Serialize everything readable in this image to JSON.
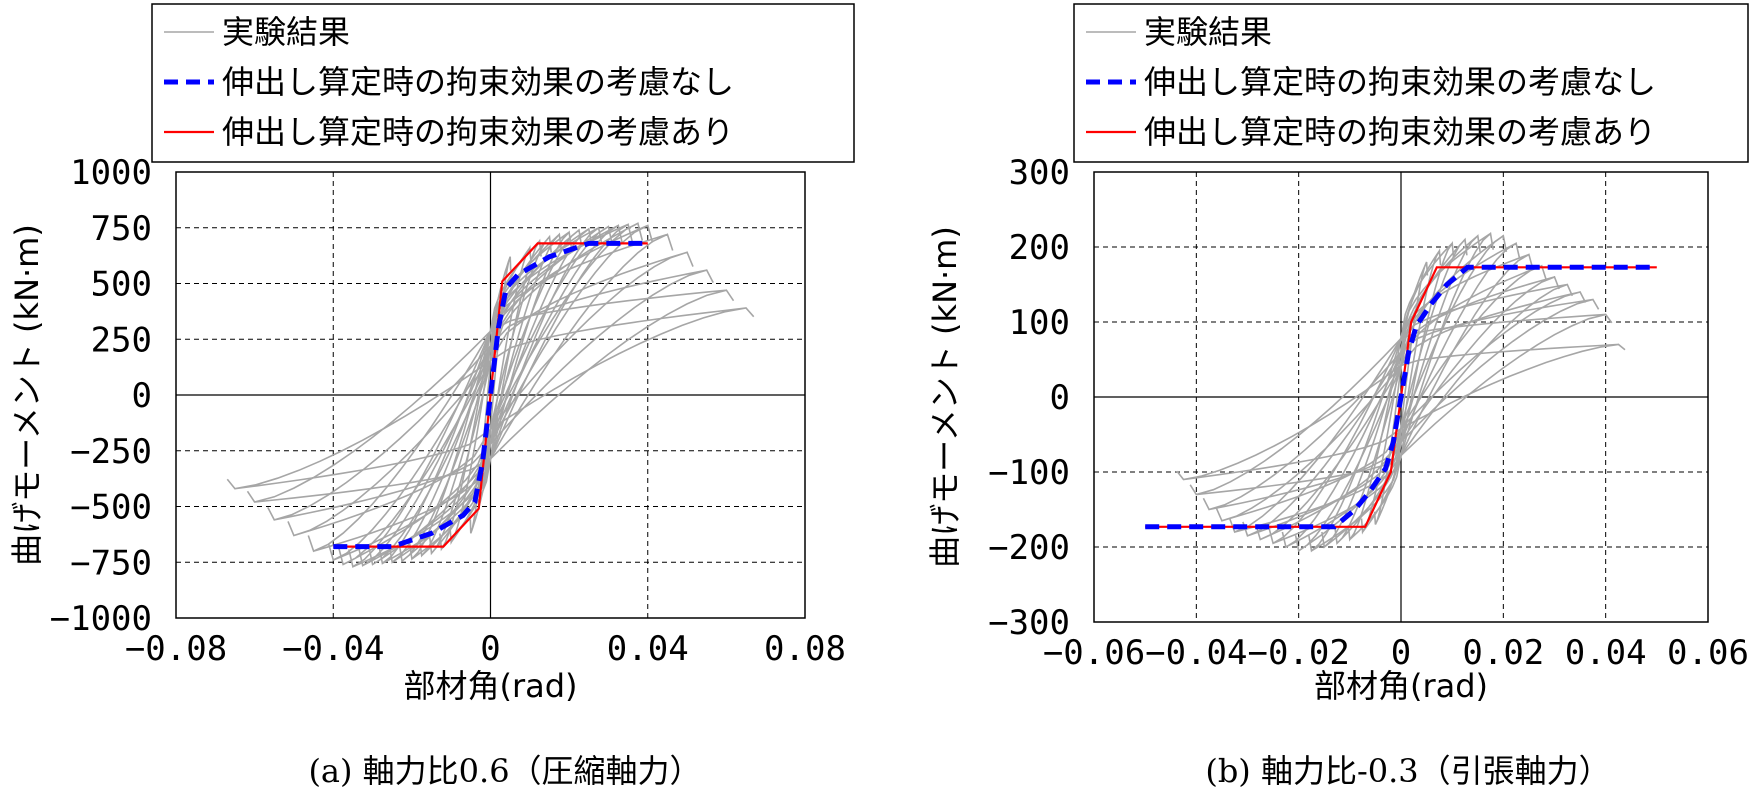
{
  "chart_data": [
    {
      "type": "line",
      "caption": "(a) 軸力比0.6（圧縮軸力）",
      "xlabel": "部材角(rad)",
      "ylabel": "曲げモーメント (kN·m)",
      "xlim": [
        -0.08,
        0.08
      ],
      "ylim": [
        -1000,
        1000
      ],
      "xticks": [
        -0.08,
        -0.04,
        0,
        0.04,
        0.08
      ],
      "xtick_labels": [
        "−0.08",
        "−0.04",
        "0",
        "0.04",
        "0.08"
      ],
      "yticks": [
        1000,
        750,
        500,
        250,
        0,
        -250,
        -500,
        -750,
        -1000
      ],
      "ytick_labels": [
        "1000",
        "750",
        "500",
        "250",
        "0",
        "−250",
        "−500",
        "−750",
        "−1000"
      ],
      "grid": true,
      "legend_position": "top-left-outside",
      "experiment": {
        "name": "実験結果",
        "color": "#a6a6a6",
        "amplitudes": [
          0.005,
          0.01,
          0.0125,
          0.015,
          0.0175,
          0.02,
          0.0225,
          0.025,
          0.0275,
          0.03,
          0.0325,
          0.035,
          0.0375,
          0.04,
          0.045,
          0.05,
          0.055,
          0.06,
          0.065
        ],
        "peak_positive": [
          620,
          660,
          690,
          710,
          720,
          730,
          740,
          745,
          750,
          755,
          760,
          765,
          770,
          760,
          720,
          640,
          560,
          470,
          390
        ],
        "peak_negative": [
          -620,
          -660,
          -690,
          -710,
          -720,
          -735,
          -745,
          -750,
          -755,
          -760,
          -765,
          -770,
          -760,
          -740,
          -700,
          -630,
          -560,
          -480,
          -420
        ],
        "intercept": 220
      },
      "series": [
        {
          "name": "伸出し算定時の拘束効果の考慮なし",
          "color": "#0000ff",
          "dash": true,
          "x": [
            -0.04,
            -0.025,
            -0.015,
            -0.007,
            -0.004,
            -0.002,
            0,
            0.002,
            0.004,
            0.007,
            0.015,
            0.025,
            0.04
          ],
          "y": [
            -680,
            -680,
            -620,
            -540,
            -480,
            -300,
            0,
            300,
            480,
            540,
            620,
            680,
            680
          ]
        },
        {
          "name": "伸出し算定時の拘束効果の考慮あり",
          "color": "#ff0000",
          "dash": false,
          "x": [
            -0.04,
            -0.012,
            -0.003,
            0,
            0.003,
            0.012,
            0.04
          ],
          "y": [
            -680,
            -680,
            -510,
            0,
            510,
            680,
            680
          ]
        }
      ]
    },
    {
      "type": "line",
      "caption": "(b) 軸力比-0.3（引張軸力）",
      "xlabel": "部材角(rad)",
      "ylabel": "曲げモーメント (kN·m)",
      "xlim": [
        -0.06,
        0.06
      ],
      "ylim": [
        -300,
        300
      ],
      "xticks": [
        -0.06,
        -0.04,
        -0.02,
        0,
        0.02,
        0.04,
        0.06
      ],
      "xtick_labels": [
        "−0.06",
        "−0.04",
        "−0.02",
        "0",
        "0.02",
        "0.04",
        "0.06"
      ],
      "yticks": [
        300,
        200,
        100,
        0,
        -100,
        -200,
        -300
      ],
      "ytick_labels": [
        "300",
        "200",
        "100",
        "0",
        "−100",
        "−200",
        "−300"
      ],
      "grid": true,
      "legend_position": "top-left-outside",
      "experiment": {
        "name": "実験結果",
        "color": "#a6a6a6",
        "amplitudes": [
          0.005,
          0.0075,
          0.01,
          0.0125,
          0.015,
          0.0175,
          0.02,
          0.0225,
          0.025,
          0.0275,
          0.03,
          0.0325,
          0.035,
          0.0375,
          0.04,
          0.0425
        ],
        "peak_positive": [
          180,
          195,
          205,
          210,
          215,
          218,
          215,
          205,
          190,
          175,
          160,
          150,
          140,
          130,
          110,
          70
        ],
        "peak_negative": [
          -170,
          -180,
          -190,
          -195,
          -200,
          -205,
          -205,
          -200,
          -195,
          -190,
          -185,
          -180,
          -165,
          -150,
          -130,
          -110
        ],
        "intercept": 60
      },
      "series": [
        {
          "name": "伸出し算定時の拘束効果の考慮なし",
          "color": "#0000ff",
          "dash": true,
          "x": [
            -0.05,
            -0.013,
            -0.009,
            -0.006,
            -0.003,
            -0.0015,
            0,
            0.0015,
            0.003,
            0.006,
            0.009,
            0.013,
            0.05
          ],
          "y": [
            -173,
            -173,
            -150,
            -125,
            -95,
            -60,
            0,
            60,
            95,
            125,
            150,
            173,
            173
          ]
        },
        {
          "name": "伸出し算定時の拘束効果の考慮あり",
          "color": "#ff0000",
          "dash": false,
          "x": [
            -0.05,
            -0.007,
            -0.002,
            0,
            0.002,
            0.007,
            0.05
          ],
          "y": [
            -173,
            -173,
            -100,
            0,
            100,
            173,
            173
          ]
        }
      ]
    }
  ]
}
